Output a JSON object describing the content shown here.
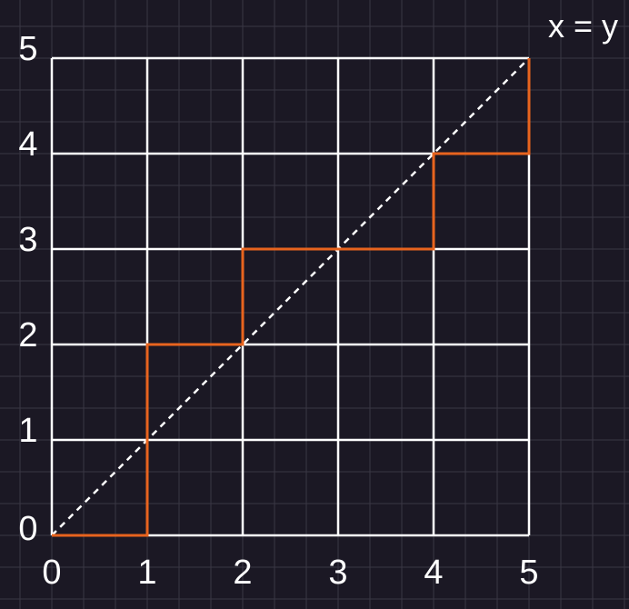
{
  "diagram": {
    "grid_min": 0,
    "grid_max": 5,
    "x_ticks": [
      "0",
      "1",
      "2",
      "3",
      "4",
      "5"
    ],
    "y_ticks": [
      "0",
      "1",
      "2",
      "3",
      "4",
      "5"
    ],
    "diagonal_label": "x = y",
    "lattice_path": [
      [
        0,
        0
      ],
      [
        1,
        0
      ],
      [
        1,
        2
      ],
      [
        2,
        2
      ],
      [
        2,
        3
      ],
      [
        4,
        3
      ],
      [
        4,
        4
      ],
      [
        5,
        4
      ],
      [
        5,
        5
      ]
    ],
    "colors": {
      "background": "#1b1824",
      "background_grid": "#3a3744",
      "grid": "#ffffff",
      "diagonal": "#ffffff",
      "path": "#e8641e",
      "text": "#ffffff"
    }
  }
}
